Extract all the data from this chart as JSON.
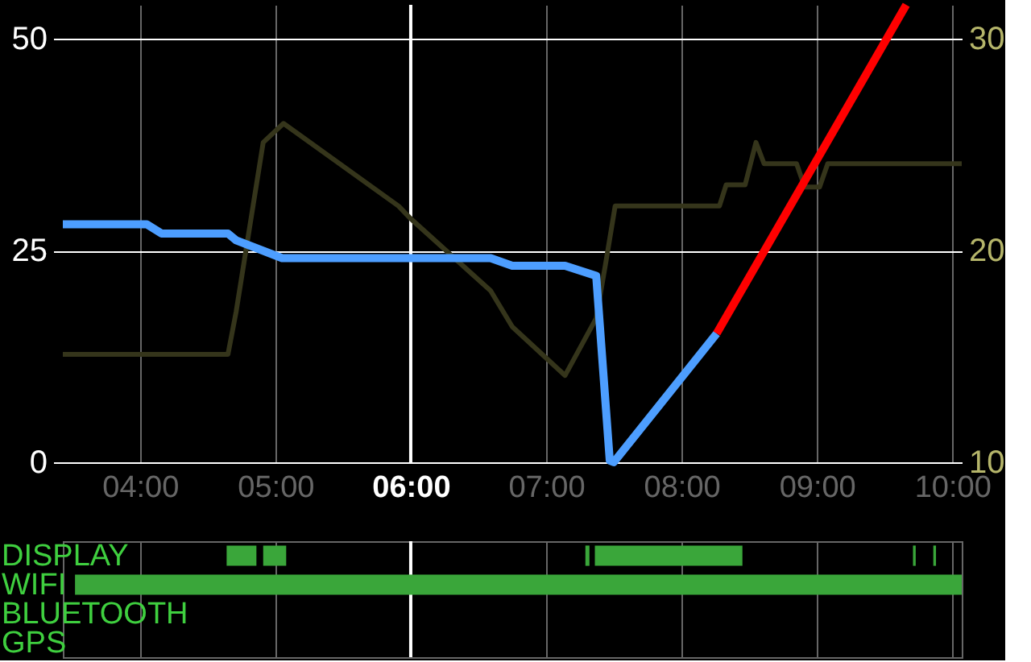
{
  "chart_data": [
    {
      "type": "line",
      "xlim": [
        3.43,
        10.07
      ],
      "xticks": [
        {
          "value": 4,
          "label": "04:00"
        },
        {
          "value": 5,
          "label": "05:00"
        },
        {
          "value": 6,
          "label": "06:00"
        },
        {
          "value": 7,
          "label": "07:00"
        },
        {
          "value": 8,
          "label": "08:00"
        },
        {
          "value": 9,
          "label": "09:00"
        },
        {
          "value": 10,
          "label": "10:00"
        }
      ],
      "ylim": [
        0,
        54
      ],
      "yticks": [
        0,
        25,
        50
      ],
      "y2lim": [
        10,
        31.6
      ],
      "y2ticks": [
        10,
        20,
        30
      ],
      "grid": true,
      "ref_lines": [
        {
          "axis": "x",
          "value": 6,
          "color": "#ffffff"
        }
      ],
      "series": [
        {
          "axis": "y2",
          "color": "#35351b",
          "x": [
            3.43,
            4.65,
            4.71,
            4.91,
            5.06,
            5.91,
            6.0,
            6.59,
            6.75,
            7.14,
            7.37,
            7.44,
            7.51,
            8.28,
            8.33,
            8.47,
            8.55,
            8.61,
            8.85,
            8.91,
            9.02,
            9.08,
            10.07
          ],
          "values": [
            15.1,
            15.1,
            17.1,
            25.1,
            26.0,
            22.1,
            21.5,
            18.1,
            16.4,
            14.1,
            16.8,
            19.4,
            22.1,
            22.1,
            23.1,
            23.1,
            25.1,
            24.1,
            24.1,
            23.0,
            23.0,
            24.1,
            24.1
          ]
        },
        {
          "color": "#4d9eff",
          "x": [
            3.43,
            4.05,
            4.16,
            4.65,
            4.71,
            5.05,
            6.59,
            6.75,
            7.14,
            7.37,
            7.47,
            7.5,
            8.26
          ],
          "values": [
            28.1,
            28.1,
            27.0,
            27.0,
            26.2,
            24.1,
            24.1,
            23.2,
            23.2,
            22.0,
            0.2,
            0,
            15.2
          ]
        },
        {
          "color": "#ff0000",
          "x": [
            8.26,
            9.66
          ],
          "values": [
            15.2,
            54
          ]
        }
      ]
    },
    {
      "type": "bar",
      "orientation": "horizontal",
      "categories": [
        "DISPLAY",
        "WIFI",
        "BLUETOOTH",
        "GPS"
      ],
      "xlim": [
        3.43,
        10.07
      ],
      "xticks": [
        {
          "value": 4,
          "label": null
        },
        {
          "value": 5,
          "label": null
        },
        {
          "value": 6,
          "label": null
        },
        {
          "value": 7,
          "label": null
        },
        {
          "value": 8,
          "label": null
        },
        {
          "value": 9,
          "label": null
        },
        {
          "value": 10,
          "label": null
        }
      ],
      "tick_labels": false,
      "grid": "x",
      "ref_lines": [
        {
          "axis": "x",
          "value": 6,
          "color": "#ffffff"
        }
      ],
      "series": [
        {
          "color": "#3aa63a",
          "base": [
            4.64,
            3.52,
            null,
            null
          ],
          "values": [
            0.22,
            6.55,
            null,
            null
          ]
        },
        {
          "color": "#3aa63a",
          "base": [
            4.91,
            null,
            null,
            null
          ],
          "values": [
            0.17,
            null,
            null,
            null
          ]
        },
        {
          "color": "#3aa63a",
          "base": [
            7.29,
            null,
            null,
            null
          ],
          "values": [
            0.03,
            null,
            null,
            null
          ]
        },
        {
          "color": "#3aa63a",
          "base": [
            7.36,
            null,
            null,
            null
          ],
          "values": [
            1.09,
            null,
            null,
            null
          ]
        },
        {
          "color": "#3aa63a",
          "base": [
            9.71,
            null,
            null,
            null
          ],
          "values": [
            0.02,
            null,
            null,
            null
          ]
        },
        {
          "color": "#3aa63a",
          "base": [
            9.86,
            null,
            null,
            null
          ],
          "values": [
            0.02,
            null,
            null,
            null
          ]
        }
      ]
    }
  ]
}
